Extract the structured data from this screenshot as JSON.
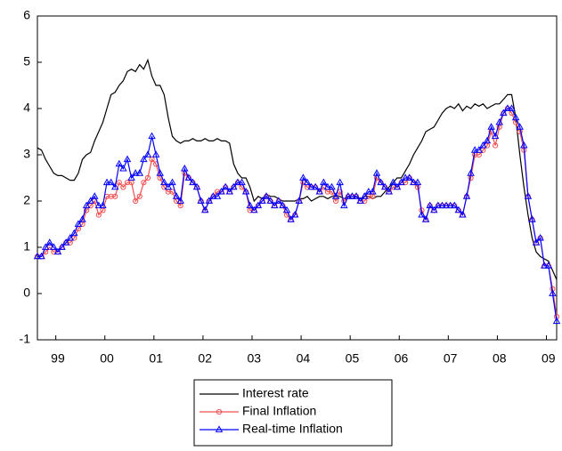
{
  "chart_data": {
    "type": "line",
    "categories": [
      null,
      null,
      null,
      null,
      null,
      "99",
      null,
      null,
      null,
      null,
      null,
      null,
      null,
      null,
      null,
      null,
      null,
      "00",
      null,
      null,
      null,
      null,
      null,
      null,
      null,
      null,
      null,
      null,
      null,
      "01",
      null,
      null,
      null,
      null,
      null,
      null,
      null,
      null,
      null,
      null,
      null,
      "02",
      null,
      null,
      null,
      null,
      null,
      null,
      null,
      null,
      null,
      null,
      null,
      "03",
      null,
      null,
      null,
      null,
      null,
      null,
      null,
      null,
      null,
      null,
      null,
      "04",
      null,
      null,
      null,
      null,
      null,
      null,
      null,
      null,
      null,
      null,
      null,
      "05",
      null,
      null,
      null,
      null,
      null,
      null,
      null,
      null,
      null,
      null,
      null,
      "06",
      null,
      null,
      null,
      null,
      null,
      null,
      null,
      null,
      null,
      null,
      null,
      "07",
      null,
      null,
      null,
      null,
      null,
      null,
      null,
      null,
      null,
      null,
      null,
      "08",
      null,
      null,
      null,
      null,
      null,
      null,
      null,
      null,
      null,
      null,
      null,
      "09",
      null,
      null
    ],
    "series": [
      {
        "name": "Interest rate",
        "color": "#000000",
        "marker": "none",
        "values": [
          3.15,
          3.1,
          2.9,
          2.75,
          2.6,
          2.55,
          2.55,
          2.5,
          2.45,
          2.45,
          2.6,
          2.9,
          3.0,
          3.05,
          3.3,
          3.5,
          3.7,
          4.0,
          4.3,
          4.35,
          4.5,
          4.6,
          4.8,
          4.85,
          4.8,
          4.95,
          4.85,
          5.05,
          4.7,
          4.5,
          4.5,
          4.3,
          3.8,
          3.4,
          3.3,
          3.25,
          3.3,
          3.3,
          3.35,
          3.3,
          3.3,
          3.35,
          3.3,
          3.3,
          3.35,
          3.3,
          3.3,
          3.25,
          2.8,
          2.6,
          2.5,
          2.5,
          2.3,
          2.0,
          2.1,
          2.05,
          2.15,
          2.1,
          2.1,
          2.05,
          2.0,
          2.0,
          2.0,
          2.0,
          2.05,
          2.05,
          2.1,
          2.0,
          2.05,
          2.1,
          2.1,
          2.05,
          2.1,
          2.1,
          2.1,
          2.05,
          2.1,
          2.05,
          2.1,
          2.05,
          2.1,
          2.1,
          2.05,
          2.1,
          2.1,
          2.2,
          2.3,
          2.4,
          2.5,
          2.5,
          2.65,
          2.8,
          3.0,
          3.15,
          3.3,
          3.5,
          3.55,
          3.6,
          3.75,
          3.9,
          4.0,
          4.05,
          4.0,
          4.1,
          3.95,
          4.05,
          4.0,
          4.1,
          4.05,
          4.1,
          4.0,
          4.05,
          4.1,
          4.1,
          4.2,
          4.3,
          4.3,
          3.8,
          3.0,
          2.3,
          1.7,
          1.2,
          0.9,
          0.8,
          0.75,
          0.7,
          0.5,
          0.3
        ]
      },
      {
        "name": "Final Inflation",
        "color": "#f05050",
        "marker": "circle",
        "values": [
          0.8,
          0.8,
          0.9,
          1.0,
          0.9,
          0.9,
          1.0,
          1.1,
          1.1,
          1.2,
          1.4,
          1.5,
          1.8,
          1.9,
          2.0,
          1.7,
          1.8,
          2.1,
          2.1,
          2.1,
          2.4,
          2.3,
          2.4,
          2.4,
          2.0,
          2.1,
          2.4,
          2.5,
          2.9,
          2.8,
          2.5,
          2.3,
          2.2,
          2.2,
          2.0,
          1.9,
          2.6,
          2.5,
          2.4,
          2.3,
          2.0,
          1.8,
          2.0,
          2.1,
          2.2,
          2.2,
          2.3,
          2.2,
          2.3,
          2.4,
          2.3,
          2.2,
          1.8,
          1.8,
          1.9,
          2.0,
          2.1,
          2.0,
          1.9,
          2.0,
          1.9,
          1.7,
          1.6,
          1.7,
          2.0,
          2.4,
          2.3,
          2.3,
          2.3,
          2.2,
          2.3,
          2.2,
          2.2,
          2.0,
          2.2,
          2.0,
          2.1,
          2.1,
          2.1,
          2.0,
          2.0,
          2.1,
          2.1,
          2.5,
          2.4,
          2.3,
          2.2,
          2.3,
          2.3,
          2.4,
          2.4,
          2.5,
          2.4,
          2.3,
          1.8,
          1.6,
          1.9,
          1.8,
          1.9,
          1.9,
          1.9,
          1.9,
          1.9,
          1.8,
          1.7,
          2.1,
          2.5,
          3.0,
          3.0,
          3.1,
          3.2,
          3.5,
          3.2,
          3.6,
          3.9,
          4.0,
          3.9,
          3.7,
          3.5,
          3.1,
          2.1,
          1.6,
          1.1,
          1.2,
          0.6,
          0.6,
          0.1,
          -0.5
        ]
      },
      {
        "name": "Real-time Inflation",
        "color": "#0000ff",
        "marker": "triangle",
        "values": [
          0.8,
          0.8,
          1.0,
          1.1,
          1.0,
          0.9,
          1.0,
          1.1,
          1.2,
          1.3,
          1.5,
          1.6,
          1.9,
          2.0,
          2.1,
          1.9,
          1.9,
          2.4,
          2.4,
          2.3,
          2.8,
          2.7,
          2.9,
          2.5,
          2.6,
          2.6,
          2.9,
          3.0,
          3.4,
          3.0,
          2.6,
          2.4,
          2.3,
          2.4,
          2.1,
          2.0,
          2.7,
          2.5,
          2.4,
          2.3,
          2.0,
          1.8,
          2.0,
          2.1,
          2.1,
          2.2,
          2.3,
          2.2,
          2.3,
          2.4,
          2.4,
          2.2,
          1.9,
          1.8,
          1.9,
          2.0,
          2.1,
          2.0,
          1.9,
          2.0,
          1.9,
          1.8,
          1.6,
          1.7,
          2.0,
          2.5,
          2.4,
          2.3,
          2.3,
          2.2,
          2.4,
          2.3,
          2.3,
          2.1,
          2.4,
          1.9,
          2.1,
          2.1,
          2.1,
          2.0,
          2.1,
          2.2,
          2.2,
          2.6,
          2.4,
          2.3,
          2.2,
          2.4,
          2.3,
          2.4,
          2.5,
          2.5,
          2.4,
          2.4,
          1.7,
          1.6,
          1.9,
          1.8,
          1.9,
          1.9,
          1.9,
          1.9,
          1.9,
          1.8,
          1.7,
          2.1,
          2.6,
          3.1,
          3.1,
          3.2,
          3.3,
          3.6,
          3.4,
          3.7,
          3.9,
          4.0,
          4.0,
          3.8,
          3.6,
          3.2,
          2.1,
          1.6,
          1.1,
          1.2,
          0.6,
          0.6,
          0.0,
          -0.6
        ]
      }
    ],
    "ylim": [
      -1,
      6
    ],
    "yticks": [
      -1,
      0,
      1,
      2,
      3,
      4,
      5,
      6
    ],
    "grid": false,
    "legend": "bottom"
  }
}
